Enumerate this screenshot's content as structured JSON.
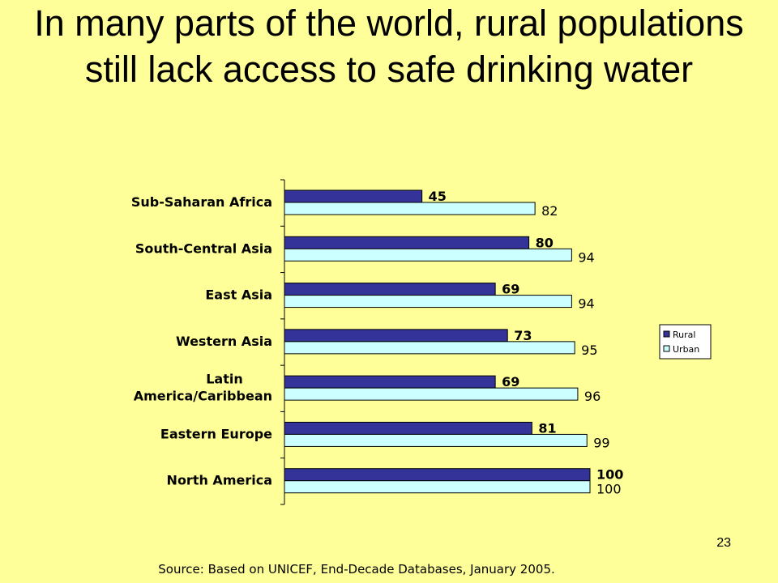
{
  "slide": {
    "title": "In many parts of the world, rural populations still lack access to safe drinking water",
    "page_number": "23",
    "source": "Source: Based on UNICEF, End-Decade Databases, January 2005."
  },
  "chart_data": {
    "type": "bar",
    "orientation": "horizontal",
    "categories": [
      "Sub-Saharan Africa",
      "South-Central Asia",
      "East Asia",
      "Western Asia",
      "Latin America/Caribbean",
      "Eastern Europe",
      "North America"
    ],
    "category_label_lines": [
      [
        "Sub-Saharan Africa"
      ],
      [
        "South-Central Asia"
      ],
      [
        "East Asia"
      ],
      [
        "Western Asia"
      ],
      [
        "Latin",
        "America/Caribbean"
      ],
      [
        "Eastern Europe"
      ],
      [
        "North America"
      ]
    ],
    "series": [
      {
        "name": "Rural",
        "values": [
          45,
          80,
          69,
          73,
          69,
          81,
          100
        ],
        "color": "#333399"
      },
      {
        "name": "Urban",
        "values": [
          82,
          94,
          94,
          95,
          96,
          99,
          100
        ],
        "color": "#ccffff"
      }
    ],
    "xlim": [
      0,
      100
    ],
    "grid": false,
    "legend": "right"
  }
}
